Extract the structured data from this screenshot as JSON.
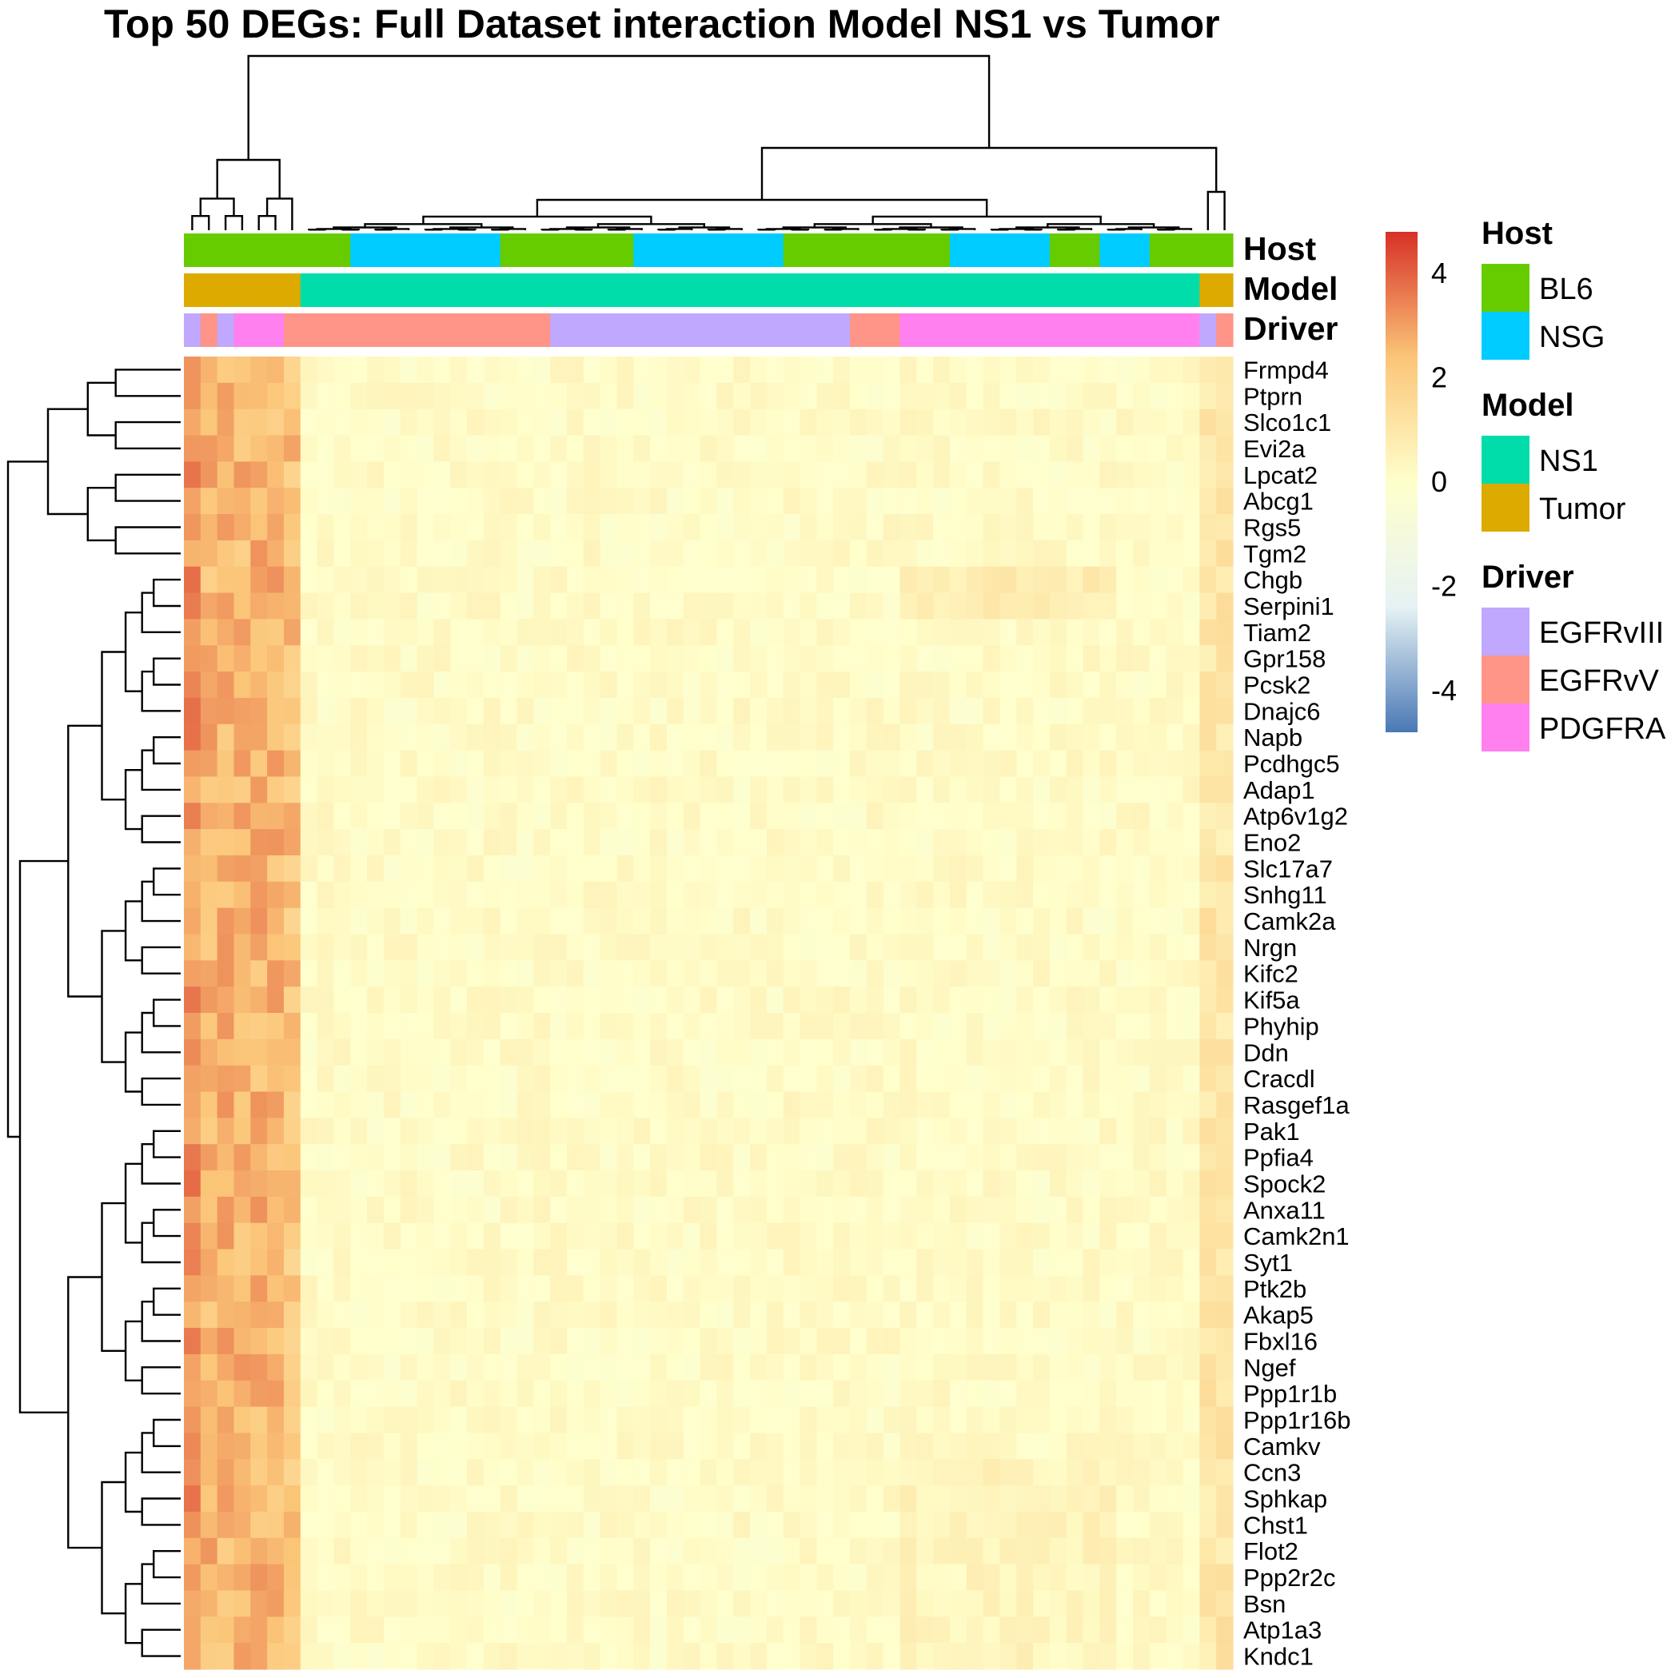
{
  "chart_data": {
    "type": "heatmap",
    "title": "Top 50 DEGs: Full Dataset interaction Model NS1 vs Tumor",
    "xlabel": "",
    "ylabel": "",
    "rows": [
      "Frmpd4",
      "Ptprn",
      "Slco1c1",
      "Evi2a",
      "Lpcat2",
      "Abcg1",
      "Rgs5",
      "Tgm2",
      "Chgb",
      "Serpini1",
      "Tiam2",
      "Gpr158",
      "Pcsk2",
      "Dnajc6",
      "Napb",
      "Pcdhgc5",
      "Adap1",
      "Atp6v1g2",
      "Eno2",
      "Slc17a7",
      "Snhg11",
      "Camk2a",
      "Nrgn",
      "Kifc2",
      "Kif5a",
      "Phyhip",
      "Ddn",
      "Cracdl",
      "Rasgef1a",
      "Pak1",
      "Ppfia4",
      "Spock2",
      "Anxa11",
      "Camk2n1",
      "Syt1",
      "Ptk2b",
      "Akap5",
      "Fbxl16",
      "Ngef",
      "Ppp1r1b",
      "Ppp1r16b",
      "Camkv",
      "Ccn3",
      "Sphkap",
      "Chst1",
      "Flot2",
      "Ppp2r2c",
      "Bsn",
      "Atp1a3",
      "Kndc1"
    ],
    "column_annotations": {
      "Host": [
        "BL6",
        "BL6",
        "BL6",
        "BL6",
        "BL6",
        "BL6",
        "BL6",
        "BL6",
        "BL6",
        "BL6",
        "NSG",
        "NSG",
        "NSG",
        "NSG",
        "NSG",
        "NSG",
        "NSG",
        "NSG",
        "NSG",
        "BL6",
        "BL6",
        "BL6",
        "BL6",
        "BL6",
        "BL6",
        "BL6",
        "BL6",
        "NSG",
        "NSG",
        "NSG",
        "NSG",
        "NSG",
        "NSG",
        "NSG",
        "NSG",
        "NSG",
        "BL6",
        "BL6",
        "BL6",
        "BL6",
        "BL6",
        "BL6",
        "BL6",
        "BL6",
        "BL6",
        "BL6",
        "NSG",
        "NSG",
        "NSG",
        "NSG",
        "NSG",
        "NSG",
        "BL6",
        "BL6",
        "BL6",
        "NSG",
        "NSG",
        "NSG",
        "BL6",
        "BL6",
        "BL6",
        "BL6",
        "BL6"
      ],
      "Model": [
        "Tumor",
        "Tumor",
        "Tumor",
        "Tumor",
        "Tumor",
        "Tumor",
        "Tumor",
        "NS1",
        "NS1",
        "NS1",
        "NS1",
        "NS1",
        "NS1",
        "NS1",
        "NS1",
        "NS1",
        "NS1",
        "NS1",
        "NS1",
        "NS1",
        "NS1",
        "NS1",
        "NS1",
        "NS1",
        "NS1",
        "NS1",
        "NS1",
        "NS1",
        "NS1",
        "NS1",
        "NS1",
        "NS1",
        "NS1",
        "NS1",
        "NS1",
        "NS1",
        "NS1",
        "NS1",
        "NS1",
        "NS1",
        "NS1",
        "NS1",
        "NS1",
        "NS1",
        "NS1",
        "NS1",
        "NS1",
        "NS1",
        "NS1",
        "NS1",
        "NS1",
        "NS1",
        "NS1",
        "NS1",
        "NS1",
        "NS1",
        "NS1",
        "NS1",
        "NS1",
        "NS1",
        "NS1",
        "Tumor",
        "Tumor"
      ],
      "Driver": [
        "EGFRvIII",
        "EGFRvV",
        "EGFRvIII",
        "PDGFRA",
        "PDGFRA",
        "PDGFRA",
        "EGFRvV",
        "EGFRvV",
        "EGFRvV",
        "EGFRvV",
        "EGFRvV",
        "EGFRvV",
        "EGFRvV",
        "EGFRvV",
        "EGFRvV",
        "EGFRvV",
        "EGFRvV",
        "EGFRvV",
        "EGFRvV",
        "EGFRvV",
        "EGFRvV",
        "EGFRvV",
        "EGFRvIII",
        "EGFRvIII",
        "EGFRvIII",
        "EGFRvIII",
        "EGFRvIII",
        "EGFRvIII",
        "EGFRvIII",
        "EGFRvIII",
        "EGFRvIII",
        "EGFRvIII",
        "EGFRvIII",
        "EGFRvIII",
        "EGFRvIII",
        "EGFRvIII",
        "EGFRvIII",
        "EGFRvIII",
        "EGFRvIII",
        "EGFRvIII",
        "EGFRvV",
        "EGFRvV",
        "EGFRvV",
        "PDGFRA",
        "PDGFRA",
        "PDGFRA",
        "PDGFRA",
        "PDGFRA",
        "PDGFRA",
        "PDGFRA",
        "PDGFRA",
        "PDGFRA",
        "PDGFRA",
        "PDGFRA",
        "PDGFRA",
        "PDGFRA",
        "PDGFRA",
        "PDGFRA",
        "PDGFRA",
        "PDGFRA",
        "PDGFRA",
        "EGFRvIII",
        "EGFRvV"
      ]
    },
    "annotation_labels": [
      "Host",
      "Model",
      "Driver"
    ],
    "legends": [
      {
        "title": "Host",
        "entries": [
          {
            "label": "BL6",
            "color": "#66CC00"
          },
          {
            "label": "NSG",
            "color": "#00CCFF"
          }
        ]
      },
      {
        "title": "Model",
        "entries": [
          {
            "label": "NS1",
            "color": "#00DDAA"
          },
          {
            "label": "Tumor",
            "color": "#DDAA00"
          }
        ]
      },
      {
        "title": "Driver",
        "entries": [
          {
            "label": "EGFRvIII",
            "color": "#C0A8FF"
          },
          {
            "label": "EGFRvV",
            "color": "#FF9488"
          },
          {
            "label": "PDGFRA",
            "color": "#FF80EE"
          }
        ]
      }
    ],
    "colorbar": {
      "ticks": [
        "4",
        "2",
        "0",
        "-2",
        "-4"
      ],
      "range": [
        -4.8,
        4.8
      ],
      "colors": [
        "#4A78B5",
        "#E6F2F4",
        "#FFFFCC",
        "#FBC578",
        "#D73027"
      ]
    },
    "row_dendrogram": true,
    "column_dendrogram": true,
    "grid": false
  }
}
